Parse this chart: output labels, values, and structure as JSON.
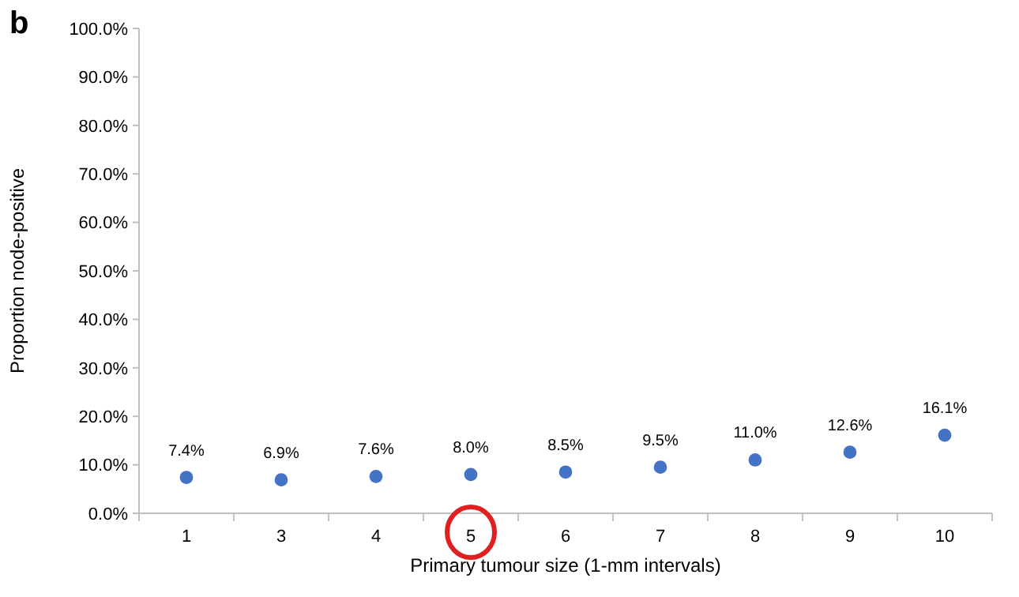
{
  "chart_data": {
    "type": "scatter",
    "title": "b",
    "xlabel": "Primary tumour size (1-mm intervals)",
    "ylabel": "Proportion node-positive",
    "categories": [
      "1",
      "3",
      "4",
      "5",
      "6",
      "7",
      "8",
      "9",
      "10"
    ],
    "values": [
      7.4,
      6.9,
      7.6,
      8.0,
      8.5,
      9.5,
      11.0,
      12.6,
      16.1
    ],
    "value_labels": [
      "7.4%",
      "6.9%",
      "7.6%",
      "8.0%",
      "8.5%",
      "9.5%",
      "11.0%",
      "12.6%",
      "16.1%"
    ],
    "color": "#4472c4",
    "marker": "circle",
    "grid": false,
    "ylim": [
      0,
      100
    ],
    "yticks": [
      {
        "value": 0,
        "label": "0.0%"
      },
      {
        "value": 10,
        "label": "10.0%"
      },
      {
        "value": 20,
        "label": "20.0%"
      },
      {
        "value": 30,
        "label": "30.0%"
      },
      {
        "value": 40,
        "label": "40.0%"
      },
      {
        "value": 50,
        "label": "50.0%"
      },
      {
        "value": 60,
        "label": "60.0%"
      },
      {
        "value": 70,
        "label": "70.0%"
      },
      {
        "value": 80,
        "label": "80.0%"
      },
      {
        "value": 90,
        "label": "90.0%"
      },
      {
        "value": 100,
        "label": "100.0%"
      }
    ]
  }
}
